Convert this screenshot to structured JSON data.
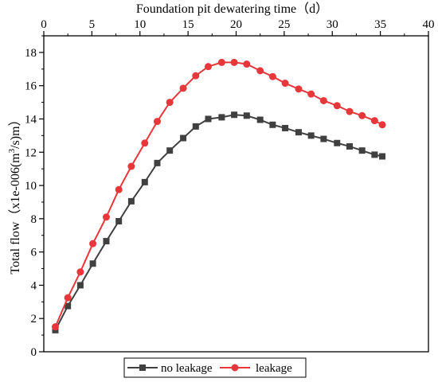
{
  "chart_data": {
    "type": "line",
    "xlabel": "Foundation pit dewatering time（d）",
    "ylabel_main": "Total flow（x1e-006(m",
    "ylabel_sup": "3",
    "ylabel_tail": "/s)m）",
    "xlim": [
      0,
      40
    ],
    "ylim": [
      0,
      19
    ],
    "xticks": [
      0,
      5,
      10,
      15,
      20,
      25,
      30,
      35,
      40
    ],
    "yticks": [
      0,
      2,
      4,
      6,
      8,
      10,
      12,
      14,
      16,
      18
    ],
    "x_axis_position": "top",
    "grid": false,
    "legend_position": "bottom-center",
    "series": [
      {
        "name": "no leakage",
        "marker": "square",
        "color": "#404040",
        "x": [
          1.2,
          2.5,
          3.8,
          5.1,
          6.5,
          7.8,
          9.1,
          10.5,
          11.8,
          13.1,
          14.5,
          15.8,
          17.1,
          18.5,
          19.8,
          21.1,
          22.5,
          23.8,
          25.1,
          26.5,
          27.8,
          29.1,
          30.5,
          31.8,
          33.1,
          34.4,
          35.2
        ],
        "values": [
          1.3,
          2.75,
          4.0,
          5.3,
          6.65,
          7.85,
          9.05,
          10.2,
          11.35,
          12.1,
          12.85,
          13.55,
          14.0,
          14.1,
          14.25,
          14.2,
          13.95,
          13.65,
          13.45,
          13.2,
          13.0,
          12.8,
          12.55,
          12.35,
          12.1,
          11.85,
          11.75
        ]
      },
      {
        "name": "leakage",
        "marker": "circle",
        "color": "#e8373a",
        "x": [
          1.2,
          2.5,
          3.8,
          5.1,
          6.5,
          7.8,
          9.1,
          10.5,
          11.8,
          13.1,
          14.5,
          15.8,
          17.1,
          18.5,
          19.8,
          21.1,
          22.5,
          23.8,
          25.1,
          26.5,
          27.8,
          29.1,
          30.5,
          31.8,
          33.1,
          34.4,
          35.2
        ],
        "values": [
          1.5,
          3.25,
          4.8,
          6.5,
          8.1,
          9.75,
          11.15,
          12.55,
          13.85,
          15.0,
          15.85,
          16.6,
          17.15,
          17.4,
          17.4,
          17.3,
          16.9,
          16.55,
          16.15,
          15.8,
          15.5,
          15.1,
          14.8,
          14.45,
          14.2,
          13.9,
          13.65
        ]
      }
    ]
  }
}
